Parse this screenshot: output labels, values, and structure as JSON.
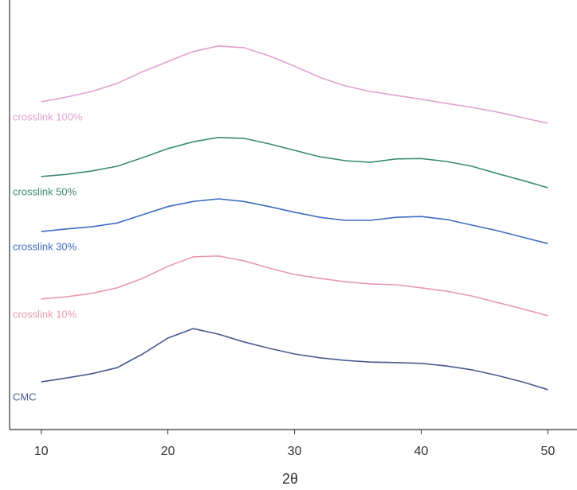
{
  "chart_data": {
    "type": "line",
    "xlabel": "2θ",
    "x": [
      10,
      12,
      14,
      16,
      18,
      20,
      22,
      24,
      26,
      28,
      30,
      32,
      34,
      36,
      38,
      40,
      42,
      44,
      46,
      48,
      50
    ],
    "xlim": [
      7.5,
      52.3
    ],
    "xticks": [
      10,
      20,
      30,
      40,
      50
    ],
    "ylim": [
      0,
      100
    ],
    "series": [
      {
        "name": "CMC",
        "color": "#4a5a8c",
        "values": [
          11.1,
          12.0,
          13.0,
          14.4,
          17.6,
          21.3,
          23.5,
          22.2,
          20.4,
          18.9,
          17.6,
          16.7,
          16.1,
          15.7,
          15.6,
          15.4,
          14.8,
          13.9,
          12.6,
          11.1,
          9.3
        ]
      },
      {
        "name": "crosslink 10%",
        "color": "#e89aaa",
        "values": [
          30.4,
          30.9,
          31.7,
          33.0,
          35.2,
          38.0,
          40.2,
          40.4,
          39.3,
          37.6,
          36.1,
          35.2,
          34.4,
          33.9,
          33.7,
          33.0,
          32.2,
          31.1,
          29.6,
          28.1,
          26.5
        ]
      },
      {
        "name": "crosslink 30%",
        "color": "#3f6cc0",
        "values": [
          46.1,
          46.7,
          47.2,
          48.1,
          50.0,
          51.9,
          53.1,
          53.7,
          53.1,
          51.9,
          50.6,
          49.4,
          48.7,
          48.7,
          49.4,
          49.6,
          48.9,
          47.6,
          46.3,
          44.8,
          43.3
        ]
      },
      {
        "name": "crosslink 50%",
        "color": "#3a8a78",
        "values": [
          58.9,
          59.4,
          60.2,
          61.3,
          63.3,
          65.4,
          67.0,
          68.0,
          67.8,
          66.5,
          65.0,
          63.5,
          62.6,
          62.2,
          63.0,
          63.1,
          62.4,
          61.3,
          59.6,
          58.0,
          56.3
        ]
      },
      {
        "name": "crosslink 100%",
        "color": "#e0a0d0",
        "values": [
          76.3,
          77.4,
          78.7,
          80.6,
          83.3,
          85.7,
          88.0,
          89.3,
          88.9,
          87.0,
          84.6,
          82.0,
          80.0,
          78.7,
          77.8,
          76.9,
          75.9,
          75.0,
          73.9,
          72.6,
          71.3
        ]
      }
    ]
  }
}
